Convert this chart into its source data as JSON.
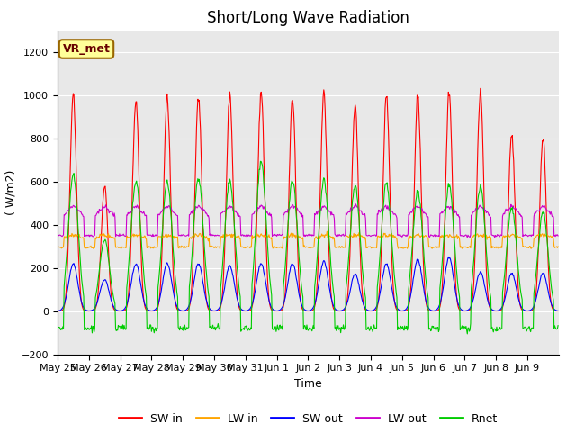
{
  "title": "Short/Long Wave Radiation",
  "xlabel": "Time",
  "ylabel": "( W/m2)",
  "ylim": [
    -200,
    1300
  ],
  "yticks": [
    -200,
    0,
    200,
    400,
    600,
    800,
    1000,
    1200
  ],
  "x_labels": [
    "May 25",
    "May 26",
    "May 27",
    "May 28",
    "May 29",
    "May 30",
    "May 31",
    "Jun 1",
    "Jun 2",
    "Jun 3",
    "Jun 4",
    "Jun 5",
    "Jun 6",
    "Jun 7",
    "Jun 8",
    "Jun 9"
  ],
  "colors": {
    "SW_in": "#ff0000",
    "LW_in": "#ffa500",
    "SW_out": "#0000ff",
    "LW_out": "#cc00cc",
    "Rnet": "#00cc00"
  },
  "legend_labels": [
    "SW in",
    "LW in",
    "SW out",
    "LW out",
    "Rnet"
  ],
  "annotation_text": "VR_met",
  "background_color": "#ffffff",
  "plot_bg_color": "#e8e8e8",
  "n_days": 16,
  "dt": 0.5,
  "SW_in_peaks": [
    1035,
    600,
    1010,
    1010,
    1020,
    1030,
    1040,
    1010,
    1030,
    970,
    1030,
    1030,
    1040,
    1040,
    840,
    820
  ],
  "LW_in_base": 305,
  "LW_in_day_delta": 45,
  "SW_out_peaks": [
    225,
    150,
    225,
    225,
    225,
    215,
    225,
    225,
    235,
    175,
    225,
    245,
    255,
    185,
    180,
    180
  ],
  "LW_out_base": 370,
  "LW_out_day_delta": 100,
  "Rnet_day_peaks": [
    650,
    340,
    620,
    610,
    630,
    620,
    710,
    620,
    620,
    590,
    610,
    570,
    600,
    590,
    490,
    470
  ],
  "Rnet_night": -80,
  "title_fontsize": 12,
  "label_fontsize": 9,
  "tick_fontsize": 8,
  "legend_fontsize": 9
}
